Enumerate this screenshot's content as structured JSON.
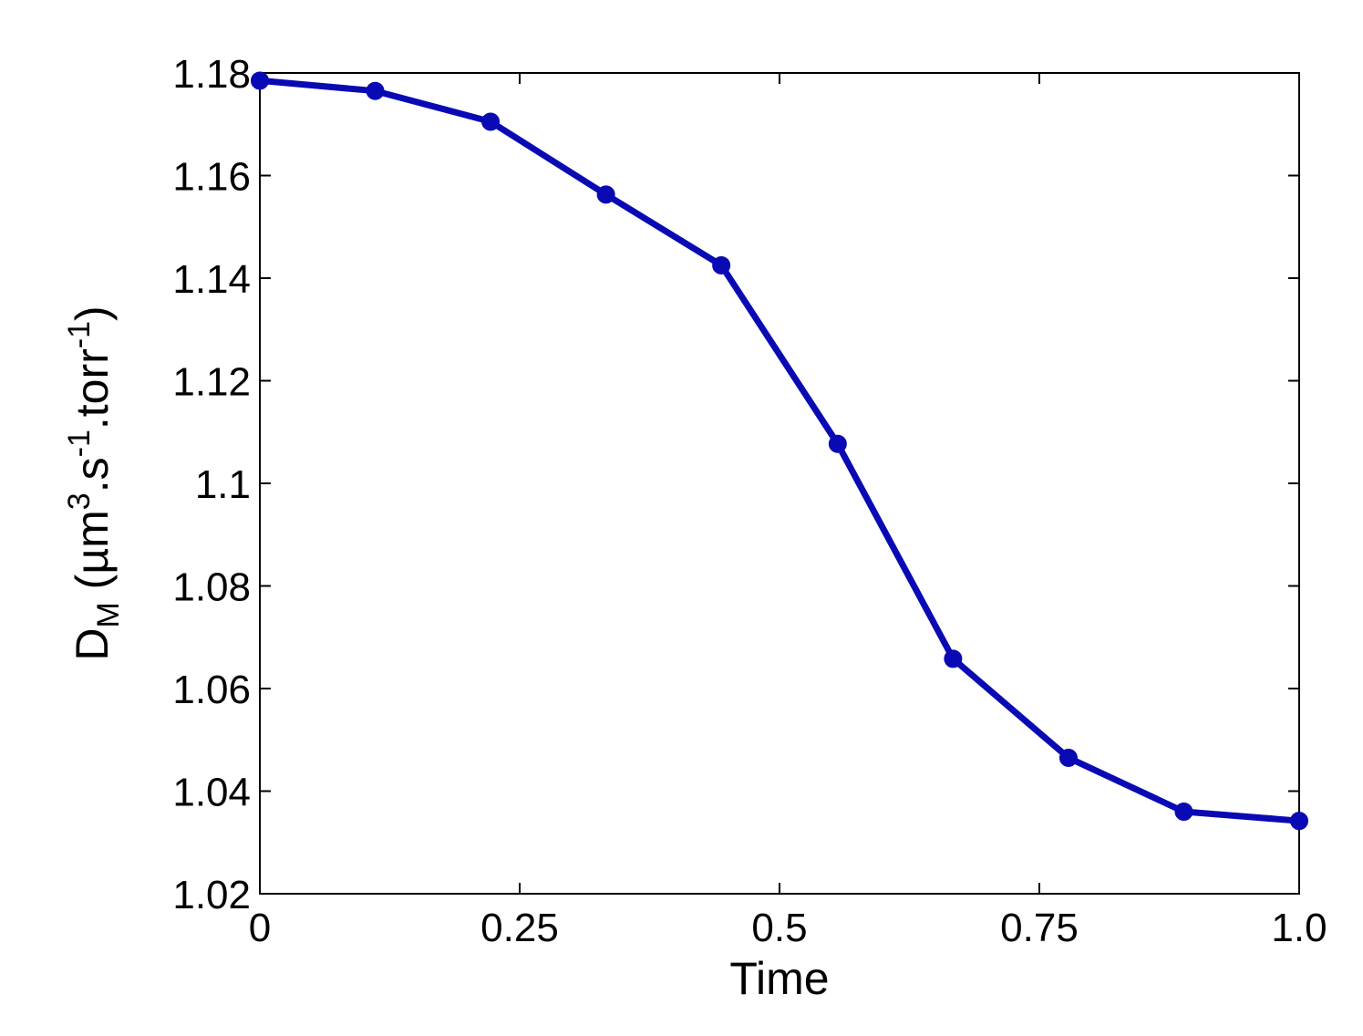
{
  "chart_data": {
    "type": "line",
    "title": "",
    "xlabel": "Time",
    "ylabel": {
      "base": "D",
      "sub": "M",
      "unit_open": " (µm",
      "sup3": "3",
      "unit_mid1": ".s",
      "sup_s": "-1",
      "unit_mid2": ".torr",
      "sup_torr": "-1",
      "unit_close": ")"
    },
    "xlim": [
      0,
      1.0
    ],
    "ylim": [
      1.02,
      1.18
    ],
    "x_ticks": [
      {
        "value": 0,
        "label": "0"
      },
      {
        "value": 0.25,
        "label": "0.25"
      },
      {
        "value": 0.5,
        "label": "0.5"
      },
      {
        "value": 0.75,
        "label": "0.75"
      },
      {
        "value": 1.0,
        "label": "1.0"
      }
    ],
    "y_ticks": [
      {
        "value": 1.02,
        "label": "1.02"
      },
      {
        "value": 1.04,
        "label": "1.04"
      },
      {
        "value": 1.06,
        "label": "1.06"
      },
      {
        "value": 1.08,
        "label": "1.08"
      },
      {
        "value": 1.1,
        "label": "1.1"
      },
      {
        "value": 1.12,
        "label": "1.12"
      },
      {
        "value": 1.14,
        "label": "1.14"
      },
      {
        "value": 1.16,
        "label": "1.16"
      },
      {
        "value": 1.18,
        "label": "1.18"
      }
    ],
    "grid": false,
    "series": [
      {
        "color": "#0a0ab4",
        "marker": "circle",
        "x": [
          0,
          0.111,
          0.222,
          0.333,
          0.444,
          0.556,
          0.667,
          0.778,
          0.889,
          1.0
        ],
        "y": [
          1.1785,
          1.1765,
          1.1705,
          1.1563,
          1.1425,
          1.1077,
          1.0658,
          1.0465,
          1.036,
          1.0342
        ]
      }
    ]
  }
}
